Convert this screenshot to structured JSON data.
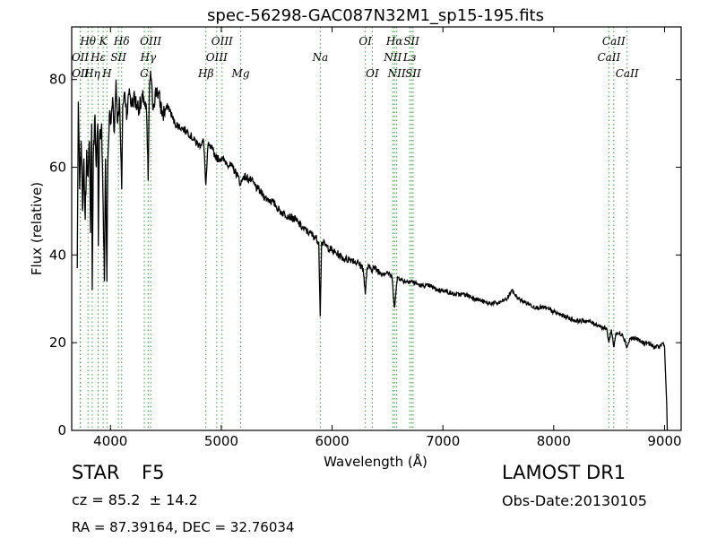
{
  "chart_data": {
    "type": "line",
    "title": "spec-56298-GAC087N32M1_sp15-195.fits",
    "xlabel": "Wavelength (Å)",
    "ylabel": "Flux (relative)",
    "xlim": [
      3650,
      9150
    ],
    "ylim": [
      0,
      92
    ],
    "xticks": [
      4000,
      5000,
      6000,
      7000,
      8000,
      9000
    ],
    "yticks": [
      0,
      20,
      40,
      60,
      80
    ],
    "grid": false,
    "line_color": "#000000",
    "marker_color": "#2ca02c",
    "spectrum_anchors": [
      [
        3700,
        37
      ],
      [
        3710,
        75
      ],
      [
        3722,
        55
      ],
      [
        3735,
        66
      ],
      [
        3748,
        50
      ],
      [
        3760,
        62
      ],
      [
        3772,
        48
      ],
      [
        3786,
        64
      ],
      [
        3798,
        58
      ],
      [
        3810,
        66
      ],
      [
        3820,
        45
      ],
      [
        3830,
        70
      ],
      [
        3835,
        32
      ],
      [
        3845,
        62
      ],
      [
        3860,
        72
      ],
      [
        3872,
        60
      ],
      [
        3885,
        70
      ],
      [
        3890,
        42
      ],
      [
        3900,
        66
      ],
      [
        3920,
        70
      ],
      [
        3935,
        50
      ],
      [
        3945,
        34
      ],
      [
        3955,
        62
      ],
      [
        3968,
        34
      ],
      [
        3975,
        60
      ],
      [
        3990,
        72
      ],
      [
        4005,
        70
      ],
      [
        4020,
        76
      ],
      [
        4035,
        68
      ],
      [
        4050,
        80
      ],
      [
        4065,
        70
      ],
      [
        4080,
        76
      ],
      [
        4101,
        55
      ],
      [
        4110,
        74
      ],
      [
        4130,
        77
      ],
      [
        4150,
        72
      ],
      [
        4170,
        78
      ],
      [
        4190,
        74
      ],
      [
        4210,
        76
      ],
      [
        4240,
        74
      ],
      [
        4270,
        74
      ],
      [
        4300,
        76
      ],
      [
        4326,
        72
      ],
      [
        4340,
        57
      ],
      [
        4350,
        76
      ],
      [
        4362,
        82
      ],
      [
        4380,
        74
      ],
      [
        4420,
        78
      ],
      [
        4470,
        72
      ],
      [
        4520,
        74
      ],
      [
        4580,
        70
      ],
      [
        4640,
        69
      ],
      [
        4700,
        68
      ],
      [
        4760,
        66
      ],
      [
        4800,
        65
      ],
      [
        4840,
        66
      ],
      [
        4861,
        56
      ],
      [
        4880,
        65
      ],
      [
        4920,
        64
      ],
      [
        4960,
        62
      ],
      [
        5000,
        62
      ],
      [
        5050,
        61
      ],
      [
        5100,
        60
      ],
      [
        5150,
        58
      ],
      [
        5175,
        56
      ],
      [
        5200,
        58
      ],
      [
        5270,
        57
      ],
      [
        5330,
        55
      ],
      [
        5400,
        53
      ],
      [
        5470,
        52
      ],
      [
        5530,
        50
      ],
      [
        5600,
        49
      ],
      [
        5670,
        48
      ],
      [
        5740,
        46
      ],
      [
        5800,
        45
      ],
      [
        5850,
        44
      ],
      [
        5880,
        43
      ],
      [
        5893,
        26
      ],
      [
        5905,
        43
      ],
      [
        5950,
        42
      ],
      [
        6000,
        41
      ],
      [
        6060,
        40
      ],
      [
        6120,
        39
      ],
      [
        6180,
        39
      ],
      [
        6240,
        38
      ],
      [
        6280,
        37
      ],
      [
        6300,
        31
      ],
      [
        6315,
        37
      ],
      [
        6380,
        37
      ],
      [
        6440,
        36
      ],
      [
        6500,
        36
      ],
      [
        6540,
        35
      ],
      [
        6563,
        28
      ],
      [
        6590,
        35
      ],
      [
        6650,
        34
      ],
      [
        6720,
        34
      ],
      [
        6800,
        33
      ],
      [
        6880,
        33
      ],
      [
        6950,
        32
      ],
      [
        7000,
        32
      ],
      [
        7100,
        31
      ],
      [
        7200,
        31
      ],
      [
        7300,
        30
      ],
      [
        7400,
        29
      ],
      [
        7500,
        29
      ],
      [
        7580,
        30
      ],
      [
        7620,
        32
      ],
      [
        7680,
        30
      ],
      [
        7760,
        29
      ],
      [
        7840,
        28
      ],
      [
        7920,
        28
      ],
      [
        8000,
        27
      ],
      [
        8100,
        26
      ],
      [
        8200,
        25
      ],
      [
        8300,
        25
      ],
      [
        8400,
        24
      ],
      [
        8480,
        23
      ],
      [
        8498,
        20
      ],
      [
        8520,
        23
      ],
      [
        8542,
        19
      ],
      [
        8560,
        22
      ],
      [
        8620,
        22
      ],
      [
        8662,
        19
      ],
      [
        8690,
        21
      ],
      [
        8740,
        21
      ],
      [
        8800,
        20
      ],
      [
        8850,
        20
      ],
      [
        8900,
        19
      ],
      [
        8950,
        19
      ],
      [
        8990,
        20
      ],
      [
        9000,
        19
      ],
      [
        9020,
        6
      ],
      [
        9025,
        0
      ]
    ],
    "lines": [
      {
        "label": "Hθ",
        "x": 3797,
        "tier": 1
      },
      {
        "label": "K",
        "x": 3934,
        "tier": 1
      },
      {
        "label": "Hδ",
        "x": 4101,
        "tier": 1
      },
      {
        "label": "OIII",
        "x": 4363,
        "tier": 1
      },
      {
        "label": "OIII",
        "x": 5007,
        "tier": 1
      },
      {
        "label": "OI",
        "x": 6300,
        "tier": 1
      },
      {
        "label": "Hα",
        "x": 6563,
        "tier": 1
      },
      {
        "label": "SII",
        "x": 6716,
        "tier": 1
      },
      {
        "label": "CaII",
        "x": 8542,
        "tier": 1
      },
      {
        "label": "OII",
        "x": 3727,
        "tier": 2
      },
      {
        "label": "Hε",
        "x": 3889,
        "tier": 2
      },
      {
        "label": "SII",
        "x": 4072,
        "tier": 2
      },
      {
        "label": "Hγ",
        "x": 4340,
        "tier": 2
      },
      {
        "label": "OIII",
        "x": 4959,
        "tier": 2
      },
      {
        "label": "Na",
        "x": 5893,
        "tier": 2
      },
      {
        "label": "NII",
        "x": 6548,
        "tier": 2
      },
      {
        "label": "Lз",
        "x": 6700,
        "tier": 2
      },
      {
        "label": "CaII",
        "x": 8498,
        "tier": 2
      },
      {
        "label": "OII",
        "x": 3729,
        "tier": 3
      },
      {
        "label": "Hη",
        "x": 3835,
        "tier": 3
      },
      {
        "label": "H",
        "x": 3968,
        "tier": 3
      },
      {
        "label": "G",
        "x": 4305,
        "tier": 3
      },
      {
        "label": "Hβ",
        "x": 4861,
        "tier": 3
      },
      {
        "label": "Mg",
        "x": 5175,
        "tier": 3
      },
      {
        "label": "OI",
        "x": 6363,
        "tier": 3
      },
      {
        "label": "NII",
        "x": 6583,
        "tier": 3
      },
      {
        "label": "SII",
        "x": 6731,
        "tier": 3
      },
      {
        "label": "CaII",
        "x": 8662,
        "tier": 3
      }
    ]
  },
  "info": {
    "object_class": "STAR",
    "subclass": "F5",
    "survey": "LAMOST DR1",
    "cz_text": "cz = 85.2  ± 14.2",
    "obs_date": "Obs-Date:20130105",
    "coords": "RA = 87.39164, DEC = 32.76034"
  }
}
